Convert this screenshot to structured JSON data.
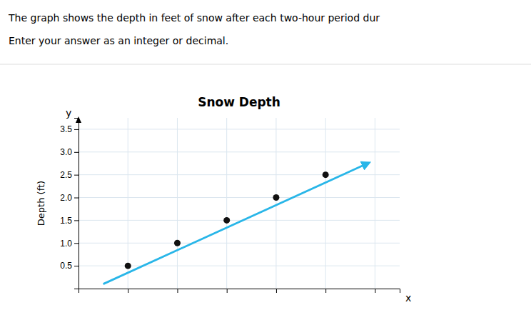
{
  "chart_data": {
    "type": "scatter",
    "title": "Snow Depth",
    "ylabel": "Depth (ft)",
    "xlabel": "x",
    "annotations": [
      "The graph shows the depth in feet of snow after each two-hour period dur",
      "Enter your answer as an integer or decimal.",
      "y"
    ],
    "series": [
      {
        "type": "scatter",
        "color": "#111111",
        "x": [
          1,
          2,
          3,
          4,
          5
        ],
        "values": [
          0.5,
          1.0,
          1.5,
          2.0,
          2.5
        ]
      },
      {
        "type": "line",
        "color": "#29b6e8",
        "marker": "arrow",
        "x": [
          0.5,
          5.85
        ],
        "values": [
          0.1,
          2.75
        ]
      }
    ],
    "xlim": [
      0,
      6.5
    ],
    "xticks": [
      1,
      2,
      3,
      4,
      5,
      6
    ],
    "ylim": [
      0.0,
      3.75
    ],
    "yticks": [
      0.5,
      {
        "value": 1.0,
        "label": "1.0"
      },
      1.5,
      {
        "value": 2.0,
        "label": "2.0"
      },
      2.5,
      {
        "value": 3.0,
        "label": "3.0"
      },
      3.5
    ],
    "grid": true,
    "tick_labels": "y"
  }
}
